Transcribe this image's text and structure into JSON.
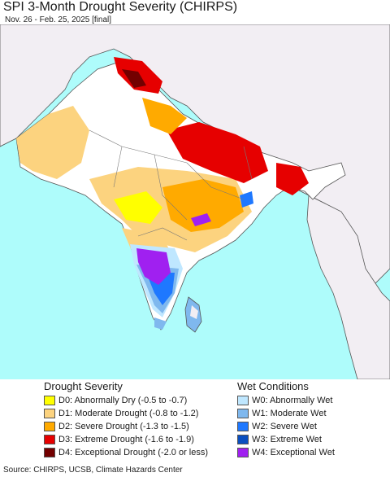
{
  "title": "SPI 3-Month Drought Severity (CHIRPS)",
  "subtitle": "Nov. 26 - Feb. 25, 2025 [final]",
  "colors": {
    "ocean": "#aefcfb",
    "land": "#f2eef3",
    "border": "#555555",
    "d0": "#ffff00",
    "d1": "#fcd37f",
    "d2": "#ffaa00",
    "d3": "#e60000",
    "d4": "#730000",
    "w0": "#bfe7ff",
    "w1": "#7fb8ee",
    "w2": "#1e78ff",
    "w3": "#0a4fc0",
    "w4": "#a020f0"
  },
  "legend": {
    "drought_heading": "Drought Severity",
    "wet_heading": "Wet Conditions",
    "drought_items": [
      {
        "label": "D0: Abnormally Dry (-0.5 to -0.7)",
        "color": "#ffff00"
      },
      {
        "label": "D1: Moderate Drought (-0.8 to -1.2)",
        "color": "#fcd37f"
      },
      {
        "label": "D2: Severe Drought (-1.3 to -1.5)",
        "color": "#ffaa00"
      },
      {
        "label": "D3: Extreme Drought (-1.6 to -1.9)",
        "color": "#e60000"
      },
      {
        "label": "D4: Exceptional Drought (-2.0 or less)",
        "color": "#730000"
      }
    ],
    "wet_items": [
      {
        "label": "W0: Abnormally Wet",
        "color": "#bfe7ff"
      },
      {
        "label": "W1: Moderate Wet",
        "color": "#7fb8ee"
      },
      {
        "label": "W2: Severe Wet",
        "color": "#1e78ff"
      },
      {
        "label": "W3: Extreme Wet",
        "color": "#0a4fc0"
      },
      {
        "label": "W4: Exceptional Wet",
        "color": "#a020f0"
      }
    ]
  },
  "source": "Source: CHIRPS, UCSB, Climate Hazards Center"
}
